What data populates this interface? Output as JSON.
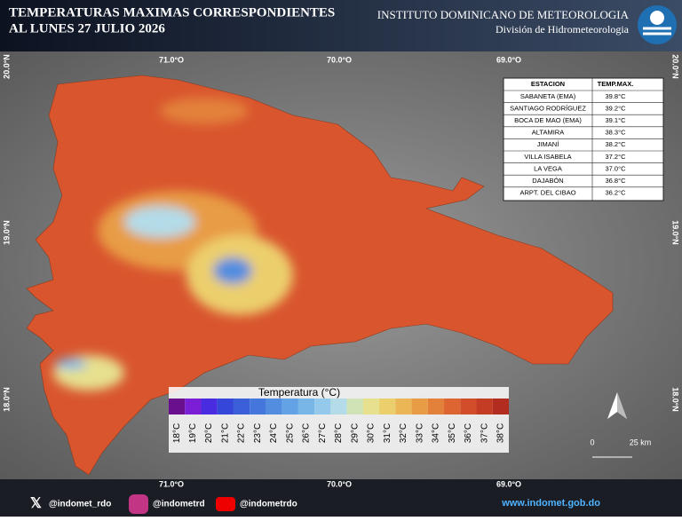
{
  "header": {
    "title_lines": [
      "TEMPERATURAS MAXIMAS CORRESPONDIENTES",
      "AL LUNES 27  JULIO 2026"
    ],
    "institute": "INSTITUTO DOMINICANO DE METEOROLOGIA",
    "division": "División de Hidrometeorologia"
  },
  "map": {
    "longitude_labels": [
      "71.0°O",
      "70.0°O",
      "69.0°O"
    ],
    "latitude_labels": [
      "20.0°N",
      "19.0°N",
      "18.0°N"
    ]
  },
  "table": {
    "columns": [
      "ESTACION",
      "TEMP.MAX."
    ],
    "rows": [
      [
        "SABANETA (EMA)",
        "39.8°C"
      ],
      [
        "SANTIAGO RODRÍGUEZ",
        "39.2°C"
      ],
      [
        "BOCA DE MAO (EMA)",
        "39.1°C"
      ],
      [
        "ALTAMIRA",
        "38.3°C"
      ],
      [
        "JIMANÍ",
        "38.2°C"
      ],
      [
        "VILLA ISABELA",
        "37.2°C"
      ],
      [
        "LA VEGA",
        "37.0°C"
      ],
      [
        "DAJABÓN",
        "36.8°C"
      ],
      [
        "ARPT. DEL CIBAO",
        "36.2°C"
      ]
    ]
  },
  "legend": {
    "title": "Temperatura (°C)",
    "items": [
      {
        "label": "18°C",
        "color": "#6a0f8e"
      },
      {
        "label": "19°C",
        "color": "#7b1fd6"
      },
      {
        "label": "20°C",
        "color": "#4a2ce0"
      },
      {
        "label": "21°C",
        "color": "#3447d8"
      },
      {
        "label": "22°C",
        "color": "#3a5fd9"
      },
      {
        "label": "23°C",
        "color": "#4576dc"
      },
      {
        "label": "24°C",
        "color": "#528de0"
      },
      {
        "label": "25°C",
        "color": "#63a2e4"
      },
      {
        "label": "26°C",
        "color": "#78b6e8"
      },
      {
        "label": "27°C",
        "color": "#94c9ec"
      },
      {
        "label": "28°C",
        "color": "#b3dbe8"
      },
      {
        "label": "29°C",
        "color": "#cfe3b7"
      },
      {
        "label": "30°C",
        "color": "#e6e08f"
      },
      {
        "label": "31°C",
        "color": "#eccf6d"
      },
      {
        "label": "32°C",
        "color": "#ebb656"
      },
      {
        "label": "33°C",
        "color": "#e89c45"
      },
      {
        "label": "34°C",
        "color": "#e3813a"
      },
      {
        "label": "35°C",
        "color": "#dc6531"
      },
      {
        "label": "36°C",
        "color": "#d24e2a"
      },
      {
        "label": "37°C",
        "color": "#c43c24"
      },
      {
        "label": "38°C",
        "color": "#b22d1f"
      }
    ]
  },
  "scale": {
    "start": "0",
    "end": "25 km"
  },
  "footer": {
    "twitter": "@indomet_rdo",
    "instagram": "@indometrd",
    "youtube": "@indometrdo",
    "website": "www.indomet.gob.do"
  }
}
